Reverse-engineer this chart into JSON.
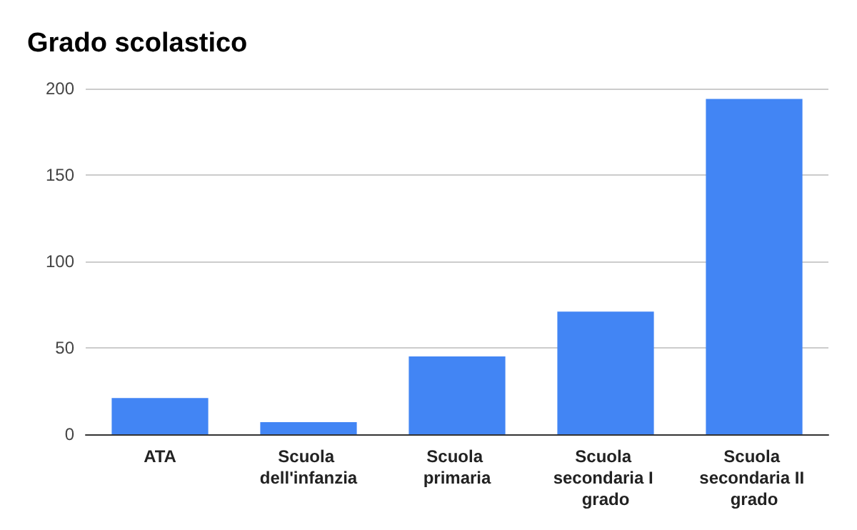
{
  "chart_data": {
    "type": "bar",
    "title": "Grado scolastico",
    "categories": [
      "ATA",
      "Scuola dell'infanzia",
      "Scuola primaria",
      "Scuola secondaria I grado",
      "Scuola secondaria II grado"
    ],
    "values": [
      21,
      7,
      45,
      71,
      194
    ],
    "color": "#4285f4",
    "ylim": [
      0,
      200
    ],
    "yticks": [
      0,
      50,
      100,
      150,
      200
    ],
    "grid": "y"
  }
}
